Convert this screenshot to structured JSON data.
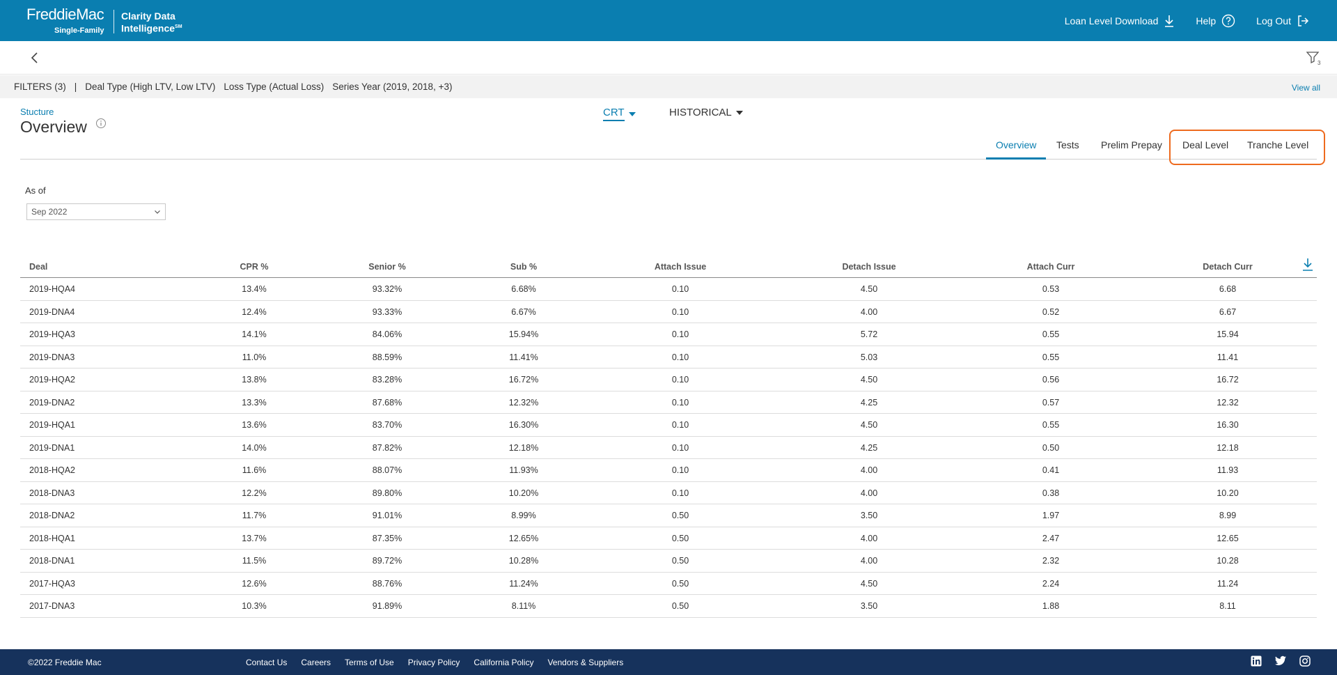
{
  "header": {
    "brand_top": "FreddieMac",
    "brand_sub": "Single-Family",
    "app_name_line1": "Clarity Data",
    "app_name_line2": "Intelligence",
    "app_name_mark": "SM",
    "loan_download": "Loan Level Download",
    "help": "Help",
    "logout": "Log Out"
  },
  "filters": {
    "count_label": "FILTERS (3)",
    "separator": "|",
    "items": [
      "Deal Type  (High LTV, Low LTV)",
      "Loss Type  (Actual Loss)",
      "Series Year  (2019, 2018, +3)"
    ],
    "view_all": "View all",
    "badge": "3"
  },
  "page": {
    "crumb": "Stucture",
    "title": "Overview",
    "selector_crt": "CRT",
    "selector_historical": "HISTORICAL"
  },
  "tabs": [
    {
      "label": "Overview"
    },
    {
      "label": "Tests"
    },
    {
      "label": "Prelim Prepay"
    },
    {
      "label": "Deal Level"
    },
    {
      "label": "Tranche Level"
    }
  ],
  "asof": {
    "label": "As of",
    "value": "Sep 2022"
  },
  "table": {
    "columns": [
      "Deal",
      "CPR %",
      "Senior %",
      "Sub %",
      "Attach Issue",
      "Detach Issue",
      "Attach Curr",
      "Detach Curr"
    ],
    "rows": [
      [
        "2019-HQA4",
        "13.4%",
        "93.32%",
        "6.68%",
        "0.10",
        "4.50",
        "0.53",
        "6.68"
      ],
      [
        "2019-DNA4",
        "12.4%",
        "93.33%",
        "6.67%",
        "0.10",
        "4.00",
        "0.52",
        "6.67"
      ],
      [
        "2019-HQA3",
        "14.1%",
        "84.06%",
        "15.94%",
        "0.10",
        "5.72",
        "0.55",
        "15.94"
      ],
      [
        "2019-DNA3",
        "11.0%",
        "88.59%",
        "11.41%",
        "0.10",
        "5.03",
        "0.55",
        "11.41"
      ],
      [
        "2019-HQA2",
        "13.8%",
        "83.28%",
        "16.72%",
        "0.10",
        "4.50",
        "0.56",
        "16.72"
      ],
      [
        "2019-DNA2",
        "13.3%",
        "87.68%",
        "12.32%",
        "0.10",
        "4.25",
        "0.57",
        "12.32"
      ],
      [
        "2019-HQA1",
        "13.6%",
        "83.70%",
        "16.30%",
        "0.10",
        "4.50",
        "0.55",
        "16.30"
      ],
      [
        "2019-DNA1",
        "14.0%",
        "87.82%",
        "12.18%",
        "0.10",
        "4.25",
        "0.50",
        "12.18"
      ],
      [
        "2018-HQA2",
        "11.6%",
        "88.07%",
        "11.93%",
        "0.10",
        "4.00",
        "0.41",
        "11.93"
      ],
      [
        "2018-DNA3",
        "12.2%",
        "89.80%",
        "10.20%",
        "0.10",
        "4.00",
        "0.38",
        "10.20"
      ],
      [
        "2018-DNA2",
        "11.7%",
        "91.01%",
        "8.99%",
        "0.50",
        "3.50",
        "1.97",
        "8.99"
      ],
      [
        "2018-HQA1",
        "13.7%",
        "87.35%",
        "12.65%",
        "0.50",
        "4.00",
        "2.47",
        "12.65"
      ],
      [
        "2018-DNA1",
        "11.5%",
        "89.72%",
        "10.28%",
        "0.50",
        "4.00",
        "2.32",
        "10.28"
      ],
      [
        "2017-HQA3",
        "12.6%",
        "88.76%",
        "11.24%",
        "0.50",
        "4.50",
        "2.24",
        "11.24"
      ],
      [
        "2017-DNA3",
        "10.3%",
        "91.89%",
        "8.11%",
        "0.50",
        "3.50",
        "1.88",
        "8.11"
      ]
    ]
  },
  "footer": {
    "copyright": "©2022 Freddie Mac",
    "links": [
      "Contact Us",
      "Careers",
      "Terms of Use",
      "Privacy Policy",
      "California Policy",
      "Vendors & Suppliers"
    ],
    "social": [
      "linkedin-icon",
      "twitter-icon",
      "instagram-icon"
    ]
  },
  "colors": {
    "header_blue": "#0a7eb0",
    "footer_navy": "#16325c",
    "highlight_orange": "#ee6a1e"
  }
}
